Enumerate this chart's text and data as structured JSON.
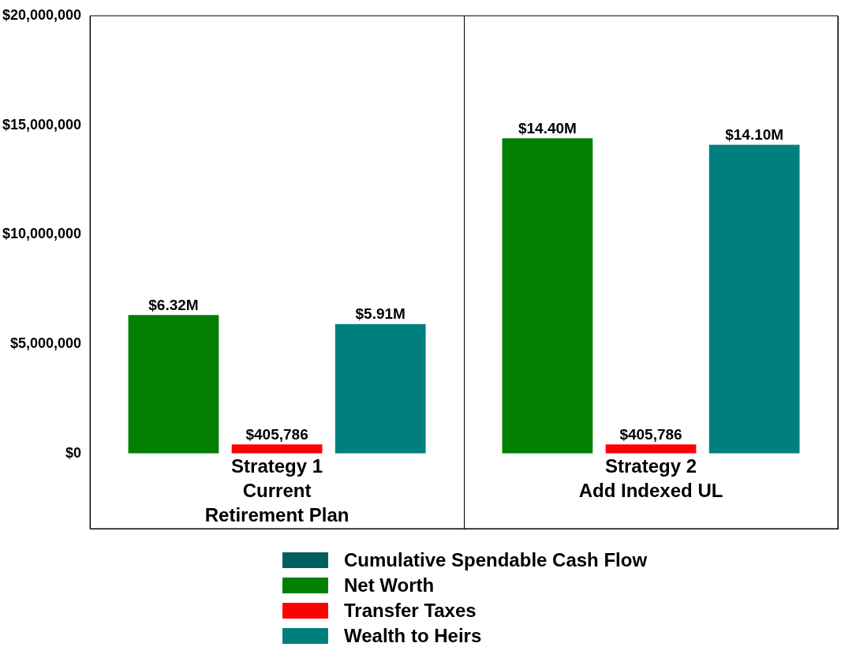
{
  "chart_data": {
    "type": "bar",
    "categories": [
      "Strategy 1\nCurrent\nRetirement Plan",
      "Strategy 2\nAdd Indexed UL"
    ],
    "series": [
      {
        "name": "Cumulative Spendable Cash Flow",
        "color": "#005f5f",
        "values": [
          null,
          null
        ]
      },
      {
        "name": "Net Worth",
        "color": "#007f00",
        "values": [
          6320000,
          14400000
        ],
        "value_labels": [
          "$6.32M",
          "$14.40M"
        ]
      },
      {
        "name": "Transfer Taxes",
        "color": "#ff0000",
        "values": [
          405786,
          405786
        ],
        "value_labels": [
          "$405,786",
          "$405,786"
        ]
      },
      {
        "name": "Wealth to Heirs",
        "color": "#007f7f",
        "values": [
          5910000,
          14100000
        ],
        "value_labels": [
          "$5.91M",
          "$14.10M"
        ]
      }
    ],
    "ylim": [
      -3440000,
      20000000
    ],
    "yticks": [
      {
        "value": 0,
        "label": "$0"
      },
      {
        "value": 5000000,
        "label": "$5,000,000"
      },
      {
        "value": 10000000,
        "label": "$10,000,000"
      },
      {
        "value": 15000000,
        "label": "$15,000,000"
      },
      {
        "value": 20000000,
        "label": "$20,000,000"
      }
    ],
    "grid": false,
    "legend": "bottom"
  }
}
